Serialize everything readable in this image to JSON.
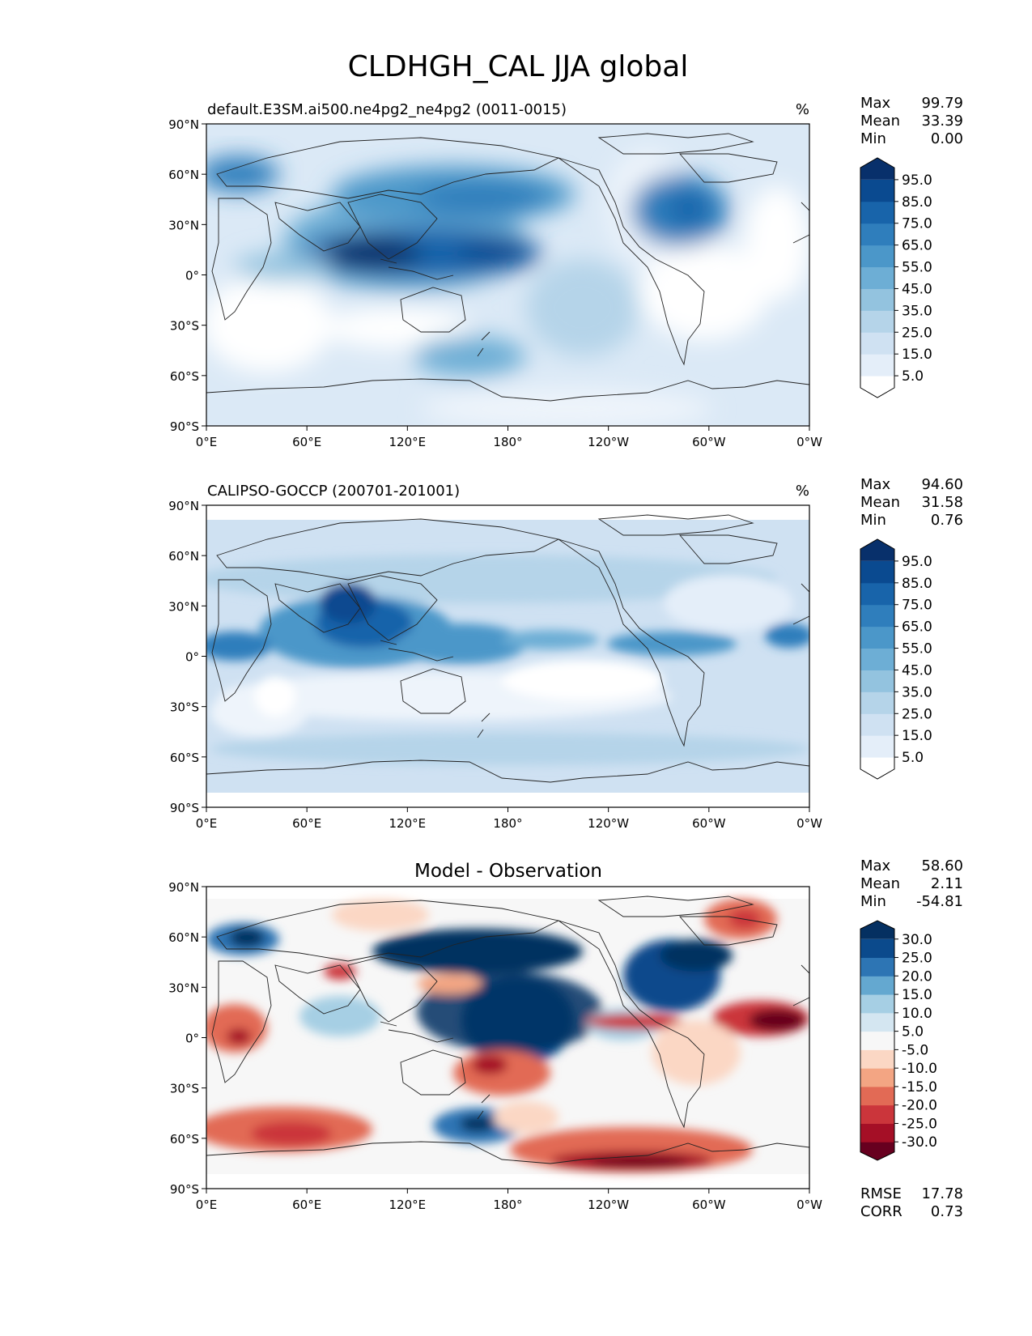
{
  "title": "CLDHGH_CAL JJA global",
  "panels": [
    {
      "title_left": "default.E3SM.ai500.ne4pg2_ne4pg2 (0011-0015)",
      "title_center": "",
      "title_right": "%",
      "stats": [
        {
          "label": "Max",
          "value": "99.79"
        },
        {
          "label": "Mean",
          "value": "33.39"
        },
        {
          "label": "Min",
          "value": "0.00"
        }
      ],
      "colorbar": {
        "colors": [
          "#ffffff",
          "#e4eef9",
          "#cfe1f2",
          "#b5d4e9",
          "#93c3df",
          "#6daed5",
          "#4b97c9",
          "#2f7ebc",
          "#1864aa",
          "#0a4a90",
          "#08306b"
        ],
        "labels": [
          "95.0",
          "85.0",
          "75.0",
          "65.0",
          "55.0",
          "45.0",
          "35.0",
          "25.0",
          "15.0",
          "5.0"
        ]
      },
      "footer_stats": []
    },
    {
      "title_left": "CALIPSO-GOCCP (200701-201001)",
      "title_center": "",
      "title_right": "%",
      "stats": [
        {
          "label": "Max",
          "value": "94.60"
        },
        {
          "label": "Mean",
          "value": "31.58"
        },
        {
          "label": "Min",
          "value": "0.76"
        }
      ],
      "colorbar": {
        "colors": [
          "#ffffff",
          "#e4eef9",
          "#cfe1f2",
          "#b5d4e9",
          "#93c3df",
          "#6daed5",
          "#4b97c9",
          "#2f7ebc",
          "#1864aa",
          "#0a4a90",
          "#08306b"
        ],
        "labels": [
          "95.0",
          "85.0",
          "75.0",
          "65.0",
          "55.0",
          "45.0",
          "35.0",
          "25.0",
          "15.0",
          "5.0"
        ]
      },
      "footer_stats": []
    },
    {
      "title_left": "",
      "title_center": "Model - Observation",
      "title_right": "",
      "stats": [
        {
          "label": "Max",
          "value": "58.60"
        },
        {
          "label": "Mean",
          "value": "2.11"
        },
        {
          "label": "Min",
          "value": "-54.81"
        }
      ],
      "colorbar": {
        "colors": [
          "#67001f",
          "#a50f26",
          "#cb353b",
          "#e26a55",
          "#f3a583",
          "#fbd7c4",
          "#f7f7f7",
          "#d4e6f1",
          "#a6cfe4",
          "#64a8d0",
          "#2d75b4",
          "#0b4a8c",
          "#053061"
        ],
        "labels": [
          "30.0",
          "25.0",
          "20.0",
          "15.0",
          "10.0",
          "5.0",
          "-5.0",
          "-10.0",
          "-15.0",
          "-20.0",
          "-25.0",
          "-30.0"
        ]
      },
      "footer_stats": [
        {
          "label": "RMSE",
          "value": "17.78"
        },
        {
          "label": "CORR",
          "value": "0.73"
        }
      ]
    }
  ],
  "axes": {
    "lat_ticks": [
      "90°N",
      "60°N",
      "30°N",
      "0°",
      "30°S",
      "60°S",
      "90°S"
    ],
    "lon_ticks": [
      "0°E",
      "60°E",
      "120°E",
      "180°",
      "120°W",
      "60°W",
      "0°W"
    ]
  },
  "chart_data": [
    {
      "type": "heatmap",
      "title": "default.E3SM.ai500.ne4pg2_ne4pg2 (0011-0015)",
      "units": "%",
      "xlim": [
        0,
        360
      ],
      "ylim": [
        -90,
        90
      ],
      "levels": [
        5,
        15,
        25,
        35,
        45,
        55,
        65,
        75,
        85,
        95
      ],
      "max": 99.79,
      "mean": 33.39,
      "min": 0.0,
      "features": [
        {
          "lon": 110,
          "lat": 8,
          "value": 95
        },
        {
          "lon": 150,
          "lat": 10,
          "value": 85
        },
        {
          "lon": 135,
          "lat": 45,
          "value": 80
        },
        {
          "lon": 285,
          "lat": 30,
          "value": 85
        },
        {
          "lon": 20,
          "lat": 60,
          "value": 80
        },
        {
          "lon": 160,
          "lat": -55,
          "value": 65
        }
      ]
    },
    {
      "type": "heatmap",
      "title": "CALIPSO-GOCCP (200701-201001)",
      "units": "%",
      "xlim": [
        0,
        360
      ],
      "ylim": [
        -90,
        90
      ],
      "levels": [
        5,
        15,
        25,
        35,
        45,
        55,
        65,
        75,
        85,
        95
      ],
      "max": 94.6,
      "mean": 31.58,
      "min": 0.76,
      "features": [
        {
          "lon": 95,
          "lat": 15,
          "value": 80
        },
        {
          "lon": 20,
          "lat": 5,
          "value": 75
        },
        {
          "lon": 280,
          "lat": 8,
          "value": 75
        },
        {
          "lon": 130,
          "lat": 5,
          "value": 70
        }
      ]
    },
    {
      "type": "heatmap",
      "title": "Model - Observation",
      "xlim": [
        0,
        360
      ],
      "ylim": [
        -90,
        90
      ],
      "levels": [
        -30,
        -25,
        -20,
        -15,
        -10,
        -5,
        5,
        10,
        15,
        20,
        25,
        30
      ],
      "max": 58.6,
      "mean": 2.11,
      "min": -54.81,
      "rmse": 17.78,
      "corr": 0.73,
      "features": [
        {
          "lon": 185,
          "lat": 15,
          "value": 35
        },
        {
          "lon": 155,
          "lat": 55,
          "value": 35
        },
        {
          "lon": 285,
          "lat": 40,
          "value": 30
        },
        {
          "lon": 160,
          "lat": -50,
          "value": 30
        },
        {
          "lon": 250,
          "lat": -77,
          "value": -35
        },
        {
          "lon": 345,
          "lat": 8,
          "value": -35
        },
        {
          "lon": 165,
          "lat": -15,
          "value": -25
        },
        {
          "lon": 55,
          "lat": -60,
          "value": -25
        }
      ]
    }
  ]
}
